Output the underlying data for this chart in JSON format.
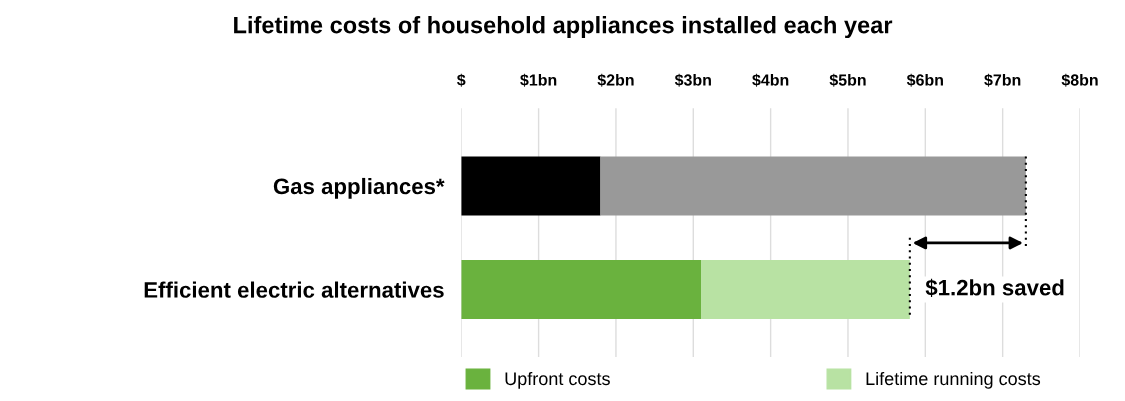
{
  "chart_data": {
    "type": "bar",
    "orientation": "horizontal",
    "stacked": true,
    "title": "Lifetime costs of household appliances installed each year",
    "categories": [
      "Gas appliances*",
      "Efficient electric alternatives"
    ],
    "series": [
      {
        "name": "Upfront costs",
        "colors": [
          "#000000",
          "#6ab23e"
        ],
        "values": [
          1.8,
          3.1
        ]
      },
      {
        "name": "Lifetime running costs",
        "colors": [
          "#999999",
          "#b8e2a3"
        ],
        "values": [
          5.5,
          2.7
        ]
      }
    ],
    "xlim": [
      0,
      8
    ],
    "xticks": [
      {
        "value": 0,
        "label": "$"
      },
      {
        "value": 1,
        "label": "$1bn"
      },
      {
        "value": 2,
        "label": "$2bn"
      },
      {
        "value": 3,
        "label": "$3bn"
      },
      {
        "value": 4,
        "label": "$4bn"
      },
      {
        "value": 5,
        "label": "$5bn"
      },
      {
        "value": 6,
        "label": "$6bn"
      },
      {
        "value": 7,
        "label": "$7bn"
      },
      {
        "value": 8,
        "label": "$8bn"
      }
    ],
    "grid": "x",
    "legend": "bottom",
    "annotations": [
      "$1.2bn saved"
    ]
  }
}
